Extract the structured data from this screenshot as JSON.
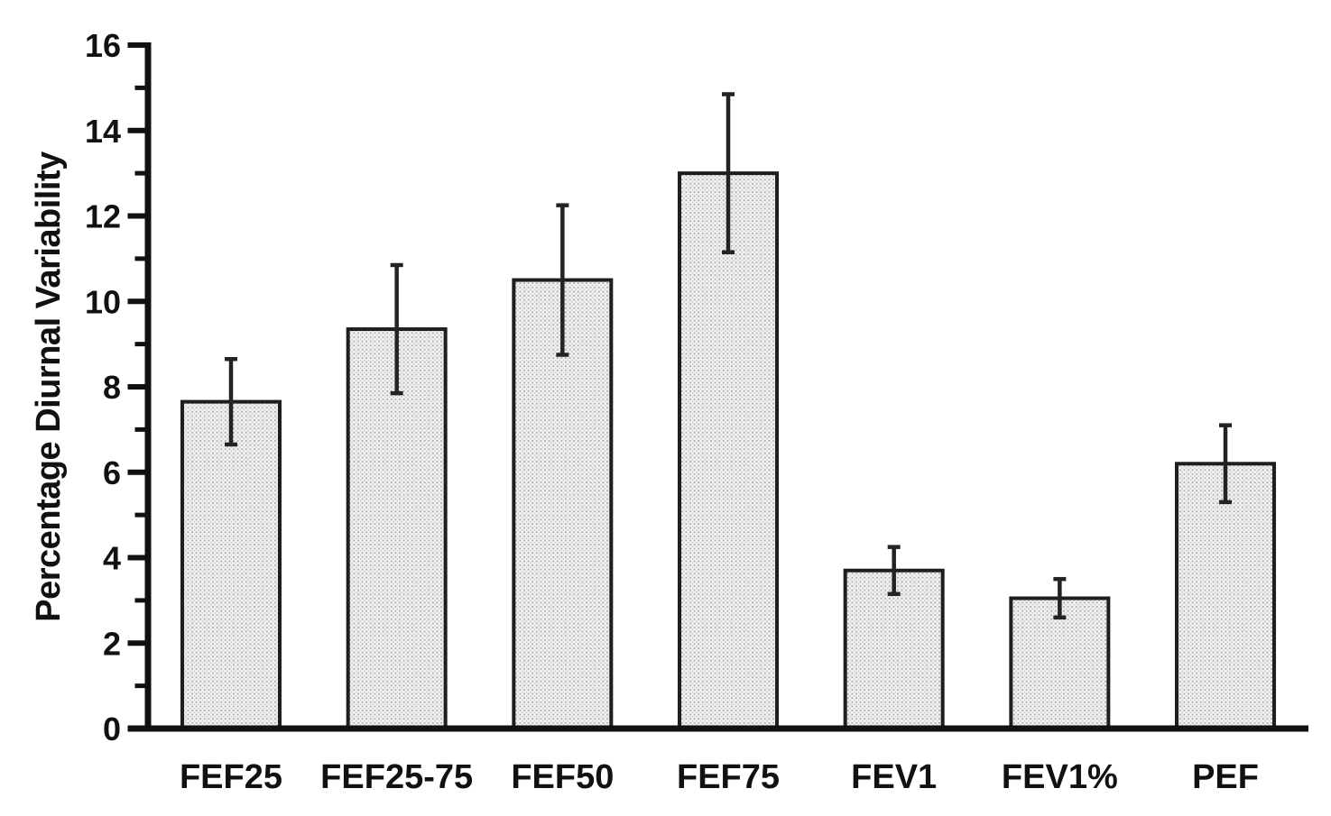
{
  "chart_data": {
    "type": "bar",
    "title": "",
    "xlabel": "",
    "ylabel": "Percentage Diurnal Variability",
    "categories": [
      "FEF25",
      "FEF25-75",
      "FEF50",
      "FEF75",
      "FEV1",
      "FEV1%",
      "PEF"
    ],
    "values": [
      7.65,
      9.35,
      10.5,
      13.0,
      3.7,
      3.05,
      6.2
    ],
    "errors": [
      1.0,
      1.5,
      1.75,
      1.85,
      0.55,
      0.45,
      0.9
    ],
    "ylim": [
      0,
      16
    ],
    "yticks": [
      0,
      2,
      4,
      6,
      8,
      10,
      12,
      14,
      16
    ],
    "minor_yticks": [
      1,
      3,
      5,
      7,
      9,
      11,
      13,
      15
    ],
    "grid": false,
    "legend": null,
    "bar_fill_style": "halftone-dot-screen",
    "error_bar_style": "capped plus-minus, drawn over bar",
    "colors": {
      "background": "#ffffff",
      "axis": "#111111",
      "bar_outline": "#1d1f1e",
      "bar_fill_base": "#f2f3f1",
      "bar_fill_dot_dark": "#a6aeaa",
      "bar_fill_dot_light": "#ccd2ce",
      "error_bar": "#222423",
      "text": "#111111"
    }
  }
}
